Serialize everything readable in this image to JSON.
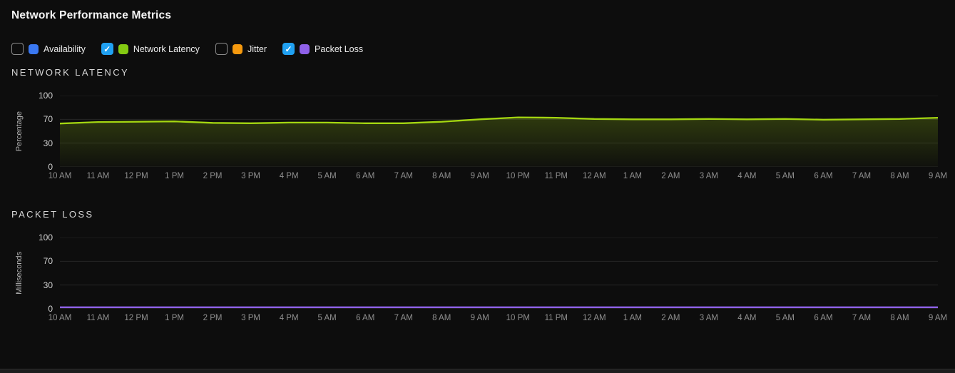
{
  "header": {
    "title": "Network Performance Metrics"
  },
  "legend": {
    "checkbox_checked_color": "#20a1f2",
    "items": [
      {
        "label": "Availability",
        "checked": false,
        "color": "#3a78f2"
      },
      {
        "label": "Network Latency",
        "checked": true,
        "color": "#84ca12"
      },
      {
        "label": "Jitter",
        "checked": false,
        "color": "#f5990e"
      },
      {
        "label": "Packet Loss",
        "checked": true,
        "color": "#8f61e9"
      }
    ]
  },
  "chart_data": [
    {
      "type": "area",
      "title": "NETWORK LATENCY",
      "ylabel": "Percentage",
      "ylim": [
        0,
        100
      ],
      "yticks": [
        0,
        30,
        70,
        100
      ],
      "grid": true,
      "legend_position": "none",
      "categories": [
        "10 AM",
        "11 AM",
        "12 PM",
        "1 PM",
        "2 PM",
        "3 PM",
        "4 PM",
        "5 AM",
        "6 AM",
        "7 AM",
        "8 AM",
        "9 AM",
        "10 PM",
        "11 PM",
        "12 AM",
        "1 AM",
        "2 AM",
        "3 AM",
        "4 AM",
        "5 AM",
        "6 AM",
        "7 AM",
        "8 AM",
        "9 AM"
      ],
      "series": [
        {
          "name": "Network Latency",
          "color": "#a4d611",
          "fill": true,
          "values": [
            63,
            65.5,
            66,
            66.5,
            64,
            63.5,
            64.5,
            64.5,
            63.5,
            63.5,
            66,
            70,
            72.5,
            72,
            70.5,
            70,
            70,
            70.5,
            70,
            70.5,
            69.5,
            70,
            70.5,
            72
          ]
        }
      ]
    },
    {
      "type": "line",
      "title": "PACKET LOSS",
      "ylabel": "Milliseconds",
      "ylim": [
        0,
        100
      ],
      "yticks": [
        0,
        30,
        70,
        100
      ],
      "grid": true,
      "legend_position": "none",
      "categories": [
        "10 AM",
        "11 AM",
        "12 PM",
        "1 PM",
        "2 PM",
        "3 PM",
        "4 PM",
        "5 AM",
        "6 AM",
        "7 AM",
        "8 AM",
        "9 AM",
        "10 PM",
        "11 PM",
        "12 AM",
        "1 AM",
        "2 AM",
        "3 AM",
        "4 AM",
        "5 AM",
        "6 AM",
        "7 AM",
        "8 AM",
        "9 AM"
      ],
      "series": [
        {
          "name": "Packet Loss",
          "color": "#8d60e4",
          "fill": true,
          "values": [
            2,
            2,
            2,
            2,
            2,
            2,
            2,
            2,
            2,
            2,
            2,
            2,
            2,
            2,
            2,
            2,
            2,
            2,
            2,
            2,
            2,
            2,
            2,
            2
          ]
        }
      ]
    }
  ]
}
